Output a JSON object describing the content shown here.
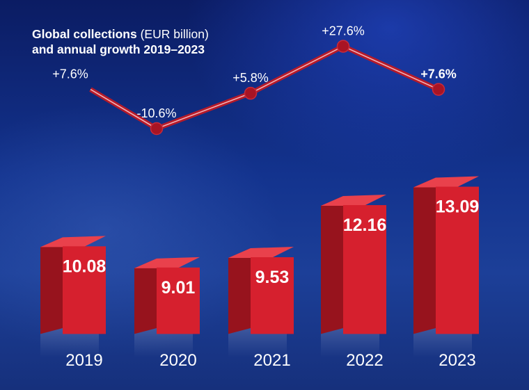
{
  "title": {
    "bold": "Global collections",
    "regular": " (EUR billion)",
    "line2": "and annual growth 2019–2023"
  },
  "colors": {
    "bar_front": "#d6202e",
    "bar_side": "#97131d",
    "bar_top": "#e9414c",
    "line": "#b51a29",
    "marker": "#a81424"
  },
  "chart_data": {
    "type": "bar",
    "categories": [
      "2019",
      "2020",
      "2021",
      "2022",
      "2023"
    ],
    "series": [
      {
        "name": "",
        "values": [
          10.08,
          9.01,
          9.53,
          12.16,
          13.09
        ]
      },
      {
        "name": "",
        "type": "line",
        "values": [
          "+7.6%",
          "-10.6%",
          "+5.8%",
          "+27.6%",
          "+7.6%"
        ]
      }
    ],
    "value_labels": [
      "10.08",
      "9.01",
      "9.53",
      "12.16",
      "13.09"
    ],
    "growth_labels": [
      "+7.6%",
      "-10.6%",
      "+5.8%",
      "+27.6%",
      "+7.6%"
    ],
    "growth_values": [
      7.6,
      -10.6,
      5.8,
      27.6,
      7.6
    ],
    "title": "Global collections (EUR billion) and annual growth 2019–2023",
    "xlabel": "",
    "ylabel": "",
    "grid": false,
    "legend": "none"
  }
}
